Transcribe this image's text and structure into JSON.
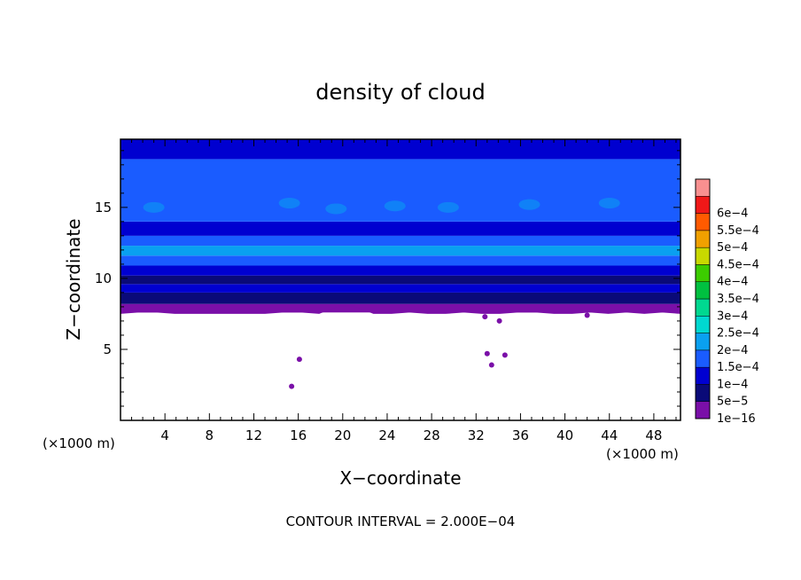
{
  "chart_data": {
    "type": "heatmap",
    "title": "density of cloud",
    "xlabel": "X−coordinate",
    "ylabel": "Z−coordinate",
    "x_unit_left": "(×1000 m)",
    "x_unit_right": "(×1000 m)",
    "footer": "CONTOUR INTERVAL = 2.000E−04",
    "xlim": [
      0,
      50.4
    ],
    "ylim": [
      0,
      19.8
    ],
    "x_ticks": [
      4,
      8,
      12,
      16,
      20,
      24,
      28,
      32,
      36,
      40,
      44,
      48
    ],
    "x_tick_labels": [
      "4",
      "8",
      "12",
      "16",
      "20",
      "24",
      "28",
      "32",
      "36",
      "40",
      "44",
      "48"
    ],
    "y_ticks": [
      5,
      10,
      15
    ],
    "y_tick_labels": [
      "5",
      "10",
      "15"
    ],
    "colorbar": {
      "levels": [
        "1e−16",
        "5e−5",
        "1e−4",
        "1.5e−4",
        "2e−4",
        "2.5e−4",
        "3e−4",
        "3.5e−4",
        "4e−4",
        "4.5e−4",
        "5e−4",
        "5.5e−4",
        "6e−4"
      ],
      "colors": [
        "#7a0fa8",
        "#0a0a78",
        "#0000d0",
        "#1a5cff",
        "#0aa0f0",
        "#00d8d0",
        "#00d890",
        "#00c040",
        "#3ccc00",
        "#c8d800",
        "#f0a000",
        "#ff5a00",
        "#f01818",
        "#f89090"
      ]
    },
    "profile": {
      "z": [
        7.6,
        8.2,
        9.0,
        9.6,
        10.2,
        10.9,
        11.6,
        12.3,
        13.0,
        14.0,
        18.4,
        19.8
      ],
      "level_index": [
        0,
        1,
        2,
        1,
        2,
        3,
        4,
        3,
        2,
        3,
        2,
        1
      ]
    },
    "cloud_base_z": [
      7.5,
      7.6,
      7.6,
      7.5,
      7.5,
      7.5,
      7.5,
      7.5,
      7.5,
      7.6,
      7.6,
      7.5,
      8.0,
      8.0,
      7.5,
      7.5,
      7.6,
      7.5,
      7.5,
      7.6,
      7.5,
      7.5,
      7.6,
      7.6,
      7.5,
      7.5,
      7.6,
      7.5,
      7.6,
      7.5,
      7.6,
      7.5
    ],
    "cloud_patches": [
      {
        "x": 16.1,
        "z": 4.3
      },
      {
        "x": 15.4,
        "z": 2.4
      },
      {
        "x": 33.0,
        "z": 4.7
      },
      {
        "x": 34.6,
        "z": 4.6
      },
      {
        "x": 33.4,
        "z": 3.9
      },
      {
        "x": 32.8,
        "z": 7.3
      },
      {
        "x": 34.1,
        "z": 7.0
      },
      {
        "x": 42.0,
        "z": 7.4
      }
    ],
    "light_blobs": [
      {
        "x": 15.2,
        "z": 15.3
      },
      {
        "x": 19.4,
        "z": 14.9
      },
      {
        "x": 24.7,
        "z": 15.1
      },
      {
        "x": 29.5,
        "z": 15.0
      },
      {
        "x": 36.8,
        "z": 15.2
      },
      {
        "x": 3.0,
        "z": 15.0
      },
      {
        "x": 44.0,
        "z": 15.3
      }
    ]
  }
}
